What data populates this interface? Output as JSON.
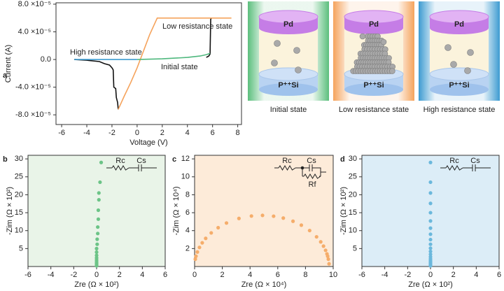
{
  "chart_data": [
    {
      "panel": "a",
      "type": "line",
      "xlabel": "Voltage (V)",
      "ylabel": "Current (A)",
      "xlim": [
        -6.45,
        8.3
      ],
      "ylim": [
        -9.4e-05,
        8.2e-05
      ],
      "xticks": [
        -6,
        -4,
        -2,
        0,
        2,
        4,
        6,
        8
      ],
      "yticks": [
        {
          "value": 8e-05,
          "label": "8.0 ×10⁻⁵"
        },
        {
          "value": 4e-05,
          "label": "4.0 ×10⁻⁵"
        },
        {
          "value": 0,
          "label": "0.0"
        },
        {
          "value": -4e-05,
          "label": "-4.0 ×10⁻⁵"
        },
        {
          "value": -8e-05,
          "label": "-8.0 ×10⁻⁵"
        }
      ],
      "series": [
        {
          "color": "#111111",
          "x": [
            -5,
            -4,
            -3,
            -2.6,
            -2.2,
            -2.0,
            -1.9,
            -1.85,
            -1.7,
            -1.65,
            -1.55,
            -1.5,
            null,
            5.5,
            5.7,
            5.8,
            5.85,
            5.9
          ],
          "values": [
            0,
            -1e-06,
            -3e-06,
            -6e-06,
            -8e-06,
            -1.2e-05,
            -1.5e-05,
            -4e-05,
            -4.2e-05,
            -5.5e-05,
            -6.2e-05,
            -7.2e-05,
            null,
            3e-06,
            5e-06,
            8e-06,
            5.8e-05,
            6e-05
          ]
        },
        {
          "name": "Low resistance state",
          "color": "#f5a35c",
          "x": [
            -1.5,
            -1.0,
            -0.5,
            0,
            0.5,
            1.0,
            1.6,
            3,
            5,
            7.5
          ],
          "values": [
            -7.2e-05,
            -5.2e-05,
            -3.3e-05,
            -1.2e-05,
            1.2e-05,
            3.6e-05,
            6e-05,
            6e-05,
            6e-05,
            6e-05
          ]
        },
        {
          "name": "Initial state",
          "color": "#4fb87e",
          "x": [
            0,
            1,
            2,
            3,
            4,
            5,
            5.5,
            5.8
          ],
          "values": [
            0,
            5e-07,
            1e-06,
            2e-06,
            3e-06,
            5e-06,
            7e-06,
            9e-06
          ]
        },
        {
          "name": "High resistance state",
          "color": "#3d9bd1",
          "x": [
            -5,
            -4,
            -3,
            -2,
            -1,
            0
          ],
          "values": [
            0,
            0,
            0,
            0,
            0,
            0
          ]
        }
      ]
    },
    {
      "panel": "b",
      "type": "scatter",
      "xlabel": "Zre (Ω × 10²)",
      "ylabel": "-Zim (Ω × 10²)",
      "xlim": [
        -6,
        6
      ],
      "ylim": [
        0,
        31
      ],
      "xticks": [
        -6,
        -4,
        -2,
        0,
        2,
        4,
        6
      ],
      "yticks": [
        5,
        10,
        15,
        20,
        25,
        30
      ],
      "background": "#e9f4e8",
      "circuit": [
        "Rc",
        "Cs"
      ],
      "series": [
        {
          "color": "#6cc487",
          "x": [
            0,
            0,
            0,
            0,
            0,
            0,
            0,
            0,
            0,
            0.05,
            0.05,
            0.1,
            0.1,
            0.15,
            0.15,
            0.2,
            0.2,
            0.3,
            0.4
          ],
          "values": [
            0.2,
            0.5,
            0.9,
            1.3,
            1.8,
            2.4,
            3.1,
            4,
            5,
            6.2,
            7.6,
            9.2,
            11,
            13.2,
            15.7,
            18.6,
            20.5,
            23.5,
            29
          ]
        }
      ]
    },
    {
      "panel": "c",
      "type": "scatter",
      "xlabel": "Zre (Ω × 10⁴)",
      "ylabel": "-Zim (Ω × 10⁴)",
      "xlim": [
        0,
        10
      ],
      "ylim": [
        0,
        12.4
      ],
      "xticks": [
        0,
        2,
        4,
        6,
        8,
        10
      ],
      "yticks": [
        2,
        4,
        6,
        8,
        10,
        12
      ],
      "background": "#fdebd9",
      "circuit": [
        "Rc",
        "Cs",
        "Rf"
      ],
      "series": [
        {
          "color": "#f5ad6b",
          "x": [
            0.05,
            0.1,
            0.2,
            0.35,
            0.55,
            0.8,
            1.2,
            1.7,
            2.3,
            3.2,
            4.1,
            4.9,
            5.7,
            6.4,
            7.1,
            7.7,
            8.3,
            8.8,
            9.1,
            9.3,
            9.45,
            9.55,
            9.6,
            9.65,
            9.7
          ],
          "values": [
            0.82,
            1.15,
            1.62,
            2.13,
            2.64,
            3.14,
            3.75,
            4.33,
            4.85,
            5.36,
            5.63,
            5.7,
            5.61,
            5.4,
            5.05,
            4.61,
            4.01,
            3.31,
            2.75,
            2.27,
            1.81,
            1.41,
            1.15,
            0.82,
            0.3
          ]
        }
      ]
    },
    {
      "panel": "d",
      "type": "scatter",
      "xlabel": "Zre (Ω × 10²)",
      "ylabel": "-Zim (Ω × 10²)",
      "xlim": [
        -6,
        6
      ],
      "ylim": [
        0,
        31
      ],
      "xticks": [
        -6,
        -4,
        -2,
        0,
        2,
        4,
        6
      ],
      "yticks": [
        5,
        10,
        15,
        20,
        25,
        30
      ],
      "background": "#dcedf7",
      "circuit": [
        "Rc",
        "Cs"
      ],
      "series": [
        {
          "color": "#6bb8dc",
          "x": [
            0,
            0,
            0,
            0,
            0,
            0,
            0,
            0,
            0,
            0,
            0,
            0,
            0,
            0,
            0,
            0,
            0,
            0,
            0,
            0
          ],
          "values": [
            0.2,
            0.5,
            0.8,
            1.2,
            1.6,
            2.1,
            2.7,
            3.4,
            4.2,
            5.1,
            6.2,
            7.5,
            9,
            10.7,
            12.7,
            15,
            17.6,
            20.5,
            23.5,
            29
          ]
        }
      ]
    }
  ],
  "illustration": {
    "panels": [
      {
        "top": "Pd",
        "bottom": "P⁺⁺Si",
        "caption": "Initial state",
        "color": "#5cbf7d"
      },
      {
        "top": "Pd",
        "bottom": "P⁺⁺Si",
        "caption": "Low resistance state",
        "color": "#f5a35c"
      },
      {
        "top": "Pd",
        "bottom": "P⁺⁺Si",
        "caption": "High resistance state",
        "color": "#3d9bd1"
      }
    ]
  }
}
